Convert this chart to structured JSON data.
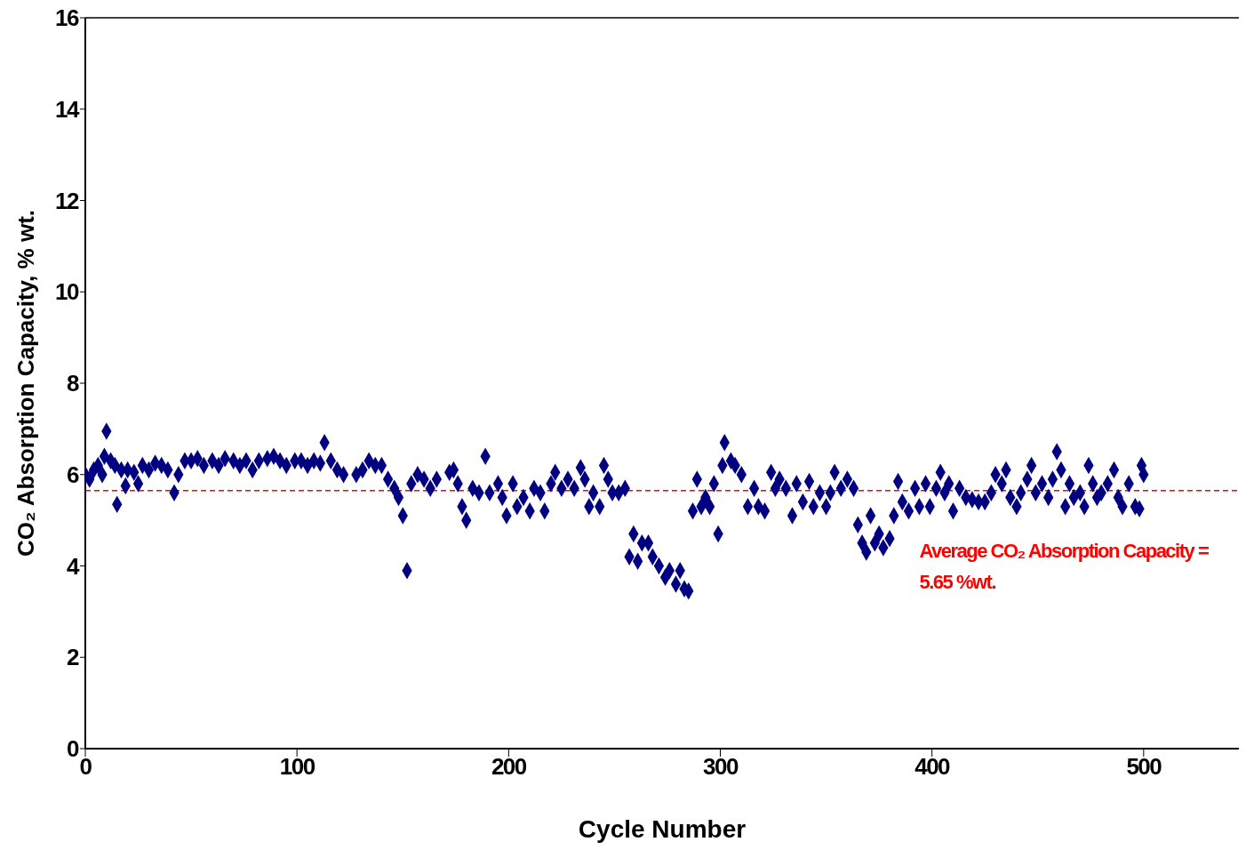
{
  "chart_data": {
    "type": "scatter",
    "xlabel": "Cycle Number",
    "ylabel": "CO₂ Absorption Capacity, % wt.",
    "xlim": [
      0,
      545
    ],
    "xticks": [
      0,
      100,
      200,
      300,
      400,
      500
    ],
    "ylim": [
      0,
      16
    ],
    "yticks": [
      0,
      2,
      4,
      6,
      8,
      10,
      12,
      14,
      16
    ],
    "grid": false,
    "legend": false,
    "marker": "diamond",
    "ref_lines": [
      {
        "axis": "y",
        "value": 5.65,
        "label": "Average CO₂ Absorption Capacity = 5.65 %wt.",
        "color": "#ff0000",
        "line_style": "dashed"
      }
    ],
    "x": [
      0,
      2,
      4,
      6,
      8,
      9,
      10,
      12,
      14,
      15,
      17,
      19,
      20,
      23,
      25,
      27,
      30,
      33,
      36,
      39,
      42,
      44,
      47,
      50,
      53,
      56,
      60,
      63,
      66,
      70,
      73,
      76,
      79,
      82,
      86,
      89,
      92,
      95,
      99,
      102,
      105,
      108,
      111,
      113,
      116,
      119,
      122,
      128,
      131,
      134,
      137,
      140,
      143,
      146,
      148,
      150,
      152,
      154,
      157,
      160,
      163,
      166,
      172,
      174,
      176,
      178,
      180,
      183,
      186,
      189,
      191,
      195,
      197,
      199,
      202,
      204,
      207,
      210,
      212,
      215,
      217,
      220,
      222,
      225,
      228,
      231,
      234,
      236,
      238,
      240,
      243,
      245,
      247,
      249,
      252,
      255,
      257,
      259,
      261,
      263,
      266,
      268,
      271,
      274,
      276,
      279,
      281,
      283,
      285,
      287,
      289,
      291,
      293,
      295,
      297,
      299,
      301,
      302,
      305,
      307,
      310,
      313,
      316,
      318,
      321,
      324,
      326,
      328,
      331,
      334,
      336,
      339,
      342,
      344,
      347,
      350,
      352,
      354,
      357,
      360,
      363,
      365,
      367,
      369,
      371,
      373,
      375,
      377,
      380,
      382,
      384,
      386,
      389,
      392,
      394,
      397,
      399,
      402,
      404,
      406,
      408,
      410,
      413,
      416,
      419,
      422,
      425,
      428,
      430,
      433,
      435,
      437,
      440,
      442,
      445,
      447,
      449,
      452,
      455,
      457,
      459,
      461,
      463,
      465,
      467,
      470,
      472,
      474,
      476,
      478,
      480,
      483,
      486,
      488,
      490,
      493,
      496,
      498,
      499,
      500
    ],
    "series": [
      {
        "color": "#000080",
        "values": [
          6.0,
          5.9,
          6.1,
          6.2,
          6.0,
          6.4,
          6.95,
          6.3,
          6.2,
          5.35,
          6.1,
          5.75,
          6.1,
          6.05,
          5.8,
          6.2,
          6.1,
          6.25,
          6.2,
          6.1,
          5.6,
          6.0,
          6.3,
          6.3,
          6.35,
          6.2,
          6.3,
          6.2,
          6.35,
          6.3,
          6.2,
          6.3,
          6.1,
          6.3,
          6.35,
          6.4,
          6.3,
          6.2,
          6.3,
          6.3,
          6.2,
          6.3,
          6.25,
          6.7,
          6.3,
          6.1,
          6.0,
          6.0,
          6.1,
          6.3,
          6.2,
          6.2,
          5.9,
          5.7,
          5.5,
          5.1,
          3.9,
          5.8,
          6.0,
          5.9,
          5.7,
          5.9,
          6.05,
          6.1,
          5.8,
          5.3,
          5.0,
          5.7,
          5.6,
          6.4,
          5.6,
          5.8,
          5.5,
          5.1,
          5.8,
          5.3,
          5.5,
          5.2,
          5.7,
          5.6,
          5.2,
          5.8,
          6.05,
          5.7,
          5.9,
          5.7,
          6.15,
          5.9,
          5.3,
          5.6,
          5.3,
          6.2,
          5.9,
          5.6,
          5.6,
          5.7,
          4.2,
          4.7,
          4.1,
          4.5,
          4.5,
          4.2,
          4.0,
          3.75,
          3.9,
          3.6,
          3.9,
          3.5,
          3.45,
          5.2,
          5.9,
          5.3,
          5.5,
          5.3,
          5.8,
          4.7,
          6.2,
          6.7,
          6.3,
          6.2,
          6.0,
          5.3,
          5.7,
          5.3,
          5.2,
          6.05,
          5.7,
          5.9,
          5.7,
          5.1,
          5.8,
          5.4,
          5.85,
          5.3,
          5.6,
          5.3,
          5.6,
          6.05,
          5.7,
          5.9,
          5.7,
          4.9,
          4.5,
          4.3,
          5.1,
          4.5,
          4.7,
          4.4,
          4.6,
          5.1,
          5.85,
          5.4,
          5.2,
          5.7,
          5.3,
          5.8,
          5.3,
          5.7,
          6.05,
          5.6,
          5.8,
          5.2,
          5.7,
          5.5,
          5.45,
          5.4,
          5.4,
          5.6,
          6.0,
          5.8,
          6.1,
          5.5,
          5.3,
          5.6,
          5.9,
          6.2,
          5.6,
          5.8,
          5.5,
          5.9,
          6.5,
          6.1,
          5.3,
          5.8,
          5.5,
          5.6,
          5.3,
          6.2,
          5.8,
          5.5,
          5.6,
          5.8,
          6.1,
          5.5,
          5.3,
          5.8,
          5.3,
          5.25,
          6.2,
          6.0
        ]
      }
    ]
  }
}
